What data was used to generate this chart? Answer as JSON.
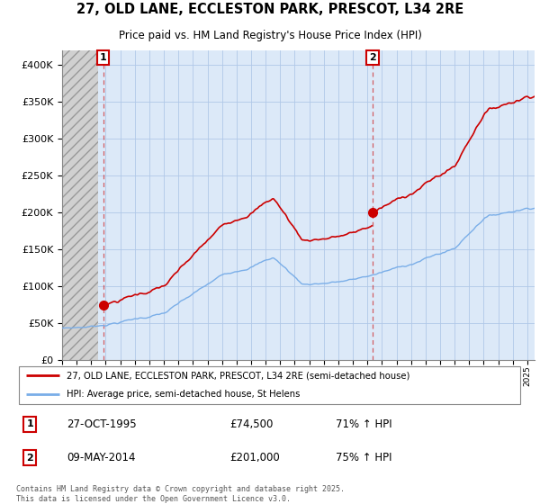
{
  "title_line1": "27, OLD LANE, ECCLESTON PARK, PRESCOT, L34 2RE",
  "title_line2": "Price paid vs. HM Land Registry's House Price Index (HPI)",
  "ylim": [
    0,
    420000
  ],
  "yticks": [
    0,
    50000,
    100000,
    150000,
    200000,
    250000,
    300000,
    350000,
    400000
  ],
  "sale1_date": "27-OCT-1995",
  "sale1_price": 74500,
  "sale1_label": "71% ↑ HPI",
  "sale1_x": 1995.82,
  "sale2_date": "09-MAY-2014",
  "sale2_price": 201000,
  "sale2_label": "75% ↑ HPI",
  "sale2_x": 2014.35,
  "hpi_color": "#7aaee8",
  "price_color": "#cc0000",
  "bg_color": "#dce9f8",
  "legend_label1": "27, OLD LANE, ECCLESTON PARK, PRESCOT, L34 2RE (semi-detached house)",
  "legend_label2": "HPI: Average price, semi-detached house, St Helens",
  "footer": "Contains HM Land Registry data © Crown copyright and database right 2025.\nThis data is licensed under the Open Government Licence v3.0.",
  "grid_color": "#b0c8e8",
  "hatch_color": "#c8c8c8"
}
